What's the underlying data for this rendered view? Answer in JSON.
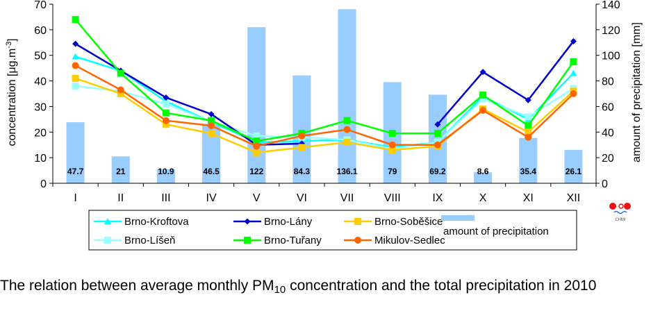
{
  "chart_data": {
    "type": "bar+line",
    "categories": [
      "I",
      "II",
      "III",
      "IV",
      "V",
      "VI",
      "VII",
      "VIII",
      "IX",
      "X",
      "XI",
      "XII"
    ],
    "ylabel": "concentration [μg.m",
    "ylabel_sup": "-3",
    "ylabel_end": "]",
    "y2label": "amount of precipitation [mm]",
    "ylim": [
      0,
      70
    ],
    "yticks": [
      "0",
      "10",
      "20",
      "30",
      "40",
      "50",
      "60",
      "70"
    ],
    "y2lim": [
      0,
      140
    ],
    "y2ticks": [
      "0",
      "20",
      "40",
      "60",
      "80",
      "100",
      "120",
      "140"
    ],
    "grid": false,
    "legend_position": "bottom",
    "bars": {
      "name": "amount of precipitation",
      "axis": "right",
      "color": "#99ccff",
      "values": [
        47.7,
        21,
        10.9,
        46.5,
        122,
        84.3,
        136.1,
        79,
        69.2,
        8.6,
        35.4,
        26.1
      ],
      "labels": [
        "47.7",
        "21",
        "10.9",
        "46.5",
        "122",
        "84.3",
        "136.1",
        "79",
        "69.2",
        "8.6",
        "35.4",
        "26.1"
      ]
    },
    "series": [
      {
        "name": "Brno-Kroftova",
        "color": "#00ffff",
        "marker": "triangle",
        "values": [
          49.5,
          44,
          32,
          24,
          16,
          16.5,
          17,
          14,
          16,
          34,
          25,
          43
        ]
      },
      {
        "name": "Brno-Líšeň",
        "color": "#99ffff",
        "marker": "square",
        "values": [
          38,
          36,
          31,
          24,
          18.5,
          18,
          17,
          13.5,
          16,
          33,
          26,
          37
        ]
      },
      {
        "name": "Brno-Lány",
        "color": "#0000cc",
        "marker": "diamond",
        "values": [
          54.5,
          44,
          33.5,
          27,
          15,
          15.5,
          null,
          null,
          23,
          43.5,
          32.5,
          55.5
        ]
      },
      {
        "name": "Brno-Tuřany",
        "color": "#00ff00",
        "marker": "square",
        "values": [
          64,
          43,
          27.5,
          24.5,
          16.5,
          19.5,
          24.5,
          19.5,
          19.5,
          34.5,
          22.5,
          47.5
        ]
      },
      {
        "name": "Brno-Soběšice",
        "color": "#ffcc00",
        "marker": "square",
        "values": [
          41,
          35,
          23,
          19.5,
          12,
          14,
          16,
          13,
          14.5,
          29,
          20,
          36
        ]
      },
      {
        "name": "Mikulov-Sedlec",
        "color": "#ff6600",
        "marker": "circle",
        "values": [
          46,
          36.5,
          24.5,
          22.5,
          14.5,
          18.5,
          21,
          15,
          15,
          28.5,
          18,
          35
        ]
      }
    ]
  },
  "legend": {
    "items": [
      {
        "label": "Brno-Kroftova",
        "color": "#00ffff",
        "marker": "triangle"
      },
      {
        "label": "Brno-Lány",
        "color": "#0000cc",
        "marker": "diamond"
      },
      {
        "label": "Brno-Soběšice",
        "color": "#ffcc00",
        "marker": "square"
      },
      {
        "label": "amount of precipitation",
        "color": "#99ccff",
        "marker": "bar"
      },
      {
        "label": "Brno-Líšeň",
        "color": "#99ffff",
        "marker": "square"
      },
      {
        "label": "Brno-Tuřany",
        "color": "#00ff00",
        "marker": "square"
      },
      {
        "label": "Mikulov-Sedlec",
        "color": "#ff6600",
        "marker": "circle"
      }
    ]
  },
  "logo": {
    "text": "CHMI"
  },
  "caption": {
    "before": "The relation between average monthly PM",
    "sub": "10",
    "after": " concentration and the total precipitation in 2010"
  }
}
